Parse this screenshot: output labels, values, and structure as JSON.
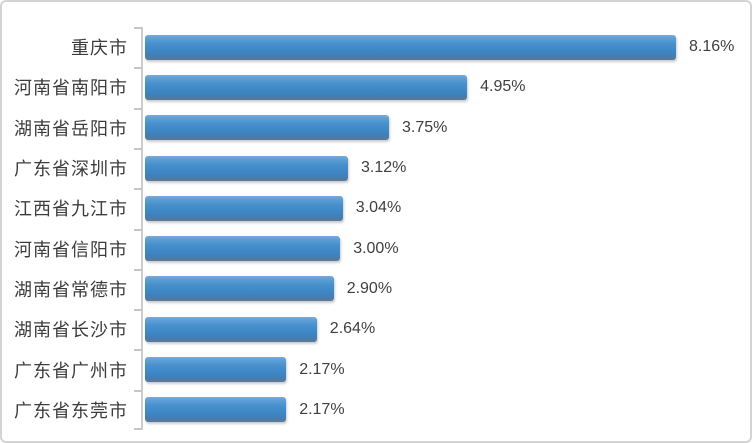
{
  "chart_data": {
    "type": "bar",
    "orientation": "horizontal",
    "title": "",
    "xlabel": "",
    "ylabel": "",
    "categories": [
      "重庆市",
      "河南省南阳市",
      "湖南省岳阳市",
      "广东省深圳市",
      "江西省九江市",
      "河南省信阳市",
      "湖南省常德市",
      "湖南省长沙市",
      "广东省广州市",
      "广东省东莞市"
    ],
    "values": [
      8.16,
      4.95,
      3.75,
      3.12,
      3.04,
      3.0,
      2.9,
      2.64,
      2.17,
      2.17
    ],
    "value_labels": [
      "8.16%",
      "4.95%",
      "3.75%",
      "3.12%",
      "3.04%",
      "3.00%",
      "2.90%",
      "2.64%",
      "2.17%",
      "2.17%"
    ],
    "xlim": [
      0,
      9
    ],
    "grid": false,
    "legend": false,
    "bar_color": "#3f88c8",
    "axis_color": "#cccccc",
    "text_color": "#3c3c3c"
  }
}
